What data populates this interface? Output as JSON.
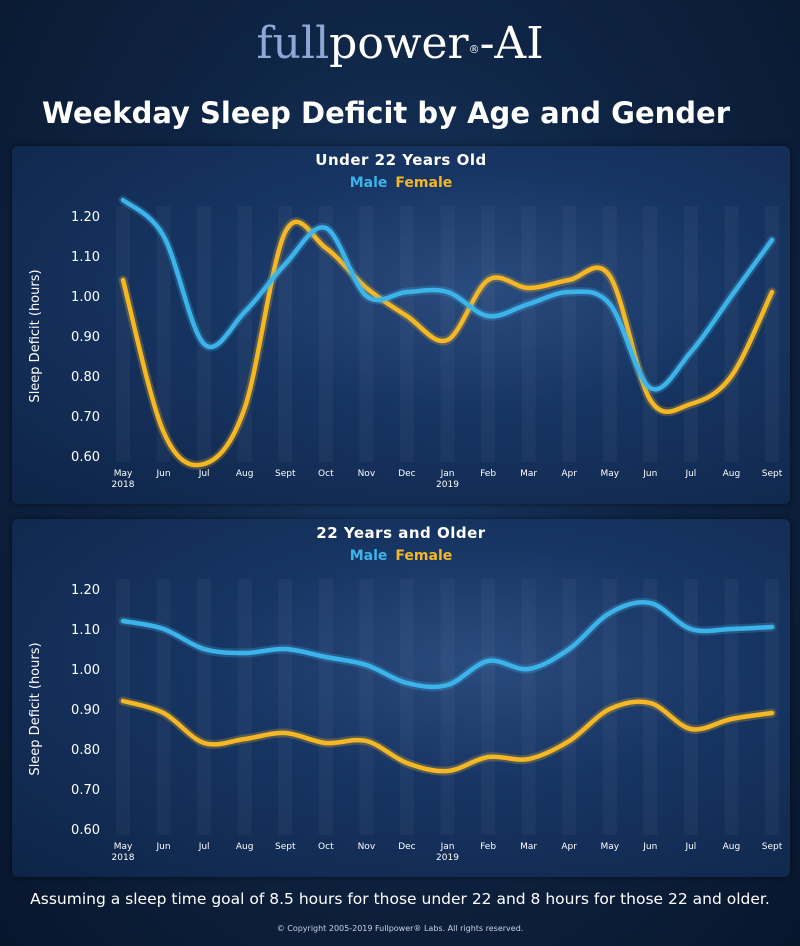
{
  "brand": {
    "logo_part1": "full",
    "logo_part2": "power",
    "logo_reg": "®",
    "logo_part3": "-AI"
  },
  "title": "Weekday Sleep Deficit by Age and Gender",
  "footnote": "Assuming a sleep time goal of 8.5 hours for those under 22 and 8 hours for those 22 and older.",
  "copyright": "© Copyright 2005-2019 Fullpower® Labs. All rights reserved.",
  "colors": {
    "male": "#3cb4ea",
    "female": "#f5b724"
  },
  "chart_data": [
    {
      "type": "line",
      "title": "Under 22 Years Old",
      "ylabel": "Sleep Deficit (hours)",
      "ylim": [
        0.6,
        1.2
      ],
      "yticks": [
        "0.60",
        "0.70",
        "0.80",
        "0.90",
        "1.00",
        "1.10",
        "1.20"
      ],
      "categories": [
        "May",
        "Jun",
        "Jul",
        "Aug",
        "Sept",
        "Oct",
        "Nov",
        "Dec",
        "Jan",
        "Feb",
        "Mar",
        "Apr",
        "May",
        "Jun",
        "Jul",
        "Aug",
        "Sept"
      ],
      "year_labels": [
        {
          "index": 0,
          "label": "2018"
        },
        {
          "index": 8,
          "label": "2019"
        }
      ],
      "grid": false,
      "legend": "top-center",
      "series": [
        {
          "name": "Male",
          "values": [
            1.24,
            1.15,
            0.88,
            0.96,
            1.08,
            1.17,
            1.0,
            1.01,
            1.01,
            0.95,
            0.98,
            1.01,
            0.98,
            0.77,
            0.86,
            1.0,
            1.14
          ]
        },
        {
          "name": "Female",
          "values": [
            1.04,
            0.66,
            0.58,
            0.72,
            1.16,
            1.12,
            1.02,
            0.95,
            0.89,
            1.04,
            1.02,
            1.04,
            1.05,
            0.74,
            0.73,
            0.8,
            1.01
          ]
        }
      ]
    },
    {
      "type": "line",
      "title": "22 Years and Older",
      "ylabel": "Sleep Deficit (hours)",
      "ylim": [
        0.6,
        1.2
      ],
      "yticks": [
        "0.60",
        "0.70",
        "0.80",
        "0.90",
        "1.00",
        "1.10",
        "1.20"
      ],
      "categories": [
        "May",
        "Jun",
        "Jul",
        "Aug",
        "Sept",
        "Oct",
        "Nov",
        "Dec",
        "Jan",
        "Feb",
        "Mar",
        "Apr",
        "May",
        "Jun",
        "Jul",
        "Aug",
        "Sept"
      ],
      "year_labels": [
        {
          "index": 0,
          "label": "2018"
        },
        {
          "index": 8,
          "label": "2019"
        }
      ],
      "grid": false,
      "legend": "top-center",
      "series": [
        {
          "name": "Male",
          "values": [
            1.12,
            1.1,
            1.05,
            1.04,
            1.05,
            1.03,
            1.01,
            0.965,
            0.96,
            1.02,
            1.0,
            1.05,
            1.14,
            1.165,
            1.1,
            1.1,
            1.105
          ]
        },
        {
          "name": "Female",
          "values": [
            0.92,
            0.89,
            0.815,
            0.825,
            0.84,
            0.815,
            0.82,
            0.765,
            0.745,
            0.78,
            0.775,
            0.82,
            0.9,
            0.915,
            0.85,
            0.875,
            0.89
          ]
        }
      ]
    }
  ]
}
